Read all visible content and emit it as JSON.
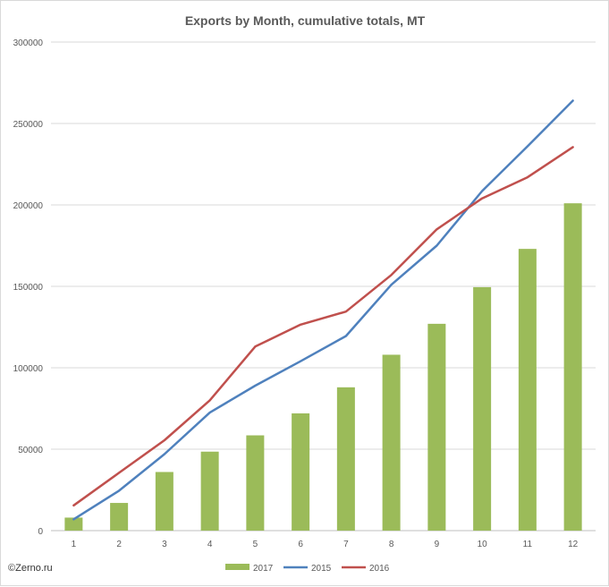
{
  "chart_data": {
    "type": "bar",
    "title": "Exports by Month, cumulative totals, MT",
    "xlabel": "",
    "ylabel": "",
    "categories": [
      "1",
      "2",
      "3",
      "4",
      "5",
      "6",
      "7",
      "8",
      "9",
      "10",
      "11",
      "12"
    ],
    "ylim": [
      0,
      300000
    ],
    "yticks": [
      0,
      50000,
      100000,
      150000,
      200000,
      250000,
      300000
    ],
    "ytick_labels": [
      "0",
      "50000",
      "100000",
      "150000",
      "200000",
      "250000",
      "300000"
    ],
    "grid": true,
    "legend_position": "bottom",
    "series": [
      {
        "name": "2017",
        "kind": "bar",
        "color": "#9bbb59",
        "values": [
          8000,
          17000,
          36000,
          48500,
          58500,
          72000,
          88000,
          108000,
          127000,
          149500,
          173000,
          201000
        ]
      },
      {
        "name": "2015",
        "kind": "line",
        "color": "#4f81bd",
        "values": [
          7000,
          24500,
          47000,
          72500,
          89000,
          104000,
          119500,
          151000,
          175000,
          208500,
          236000,
          264000
        ]
      },
      {
        "name": "2016",
        "kind": "line",
        "color": "#c0504d",
        "values": [
          15500,
          35500,
          55500,
          80000,
          113000,
          126500,
          134500,
          157000,
          185000,
          204000,
          217000,
          235500
        ]
      }
    ]
  },
  "copyright": "©Zerno.ru"
}
